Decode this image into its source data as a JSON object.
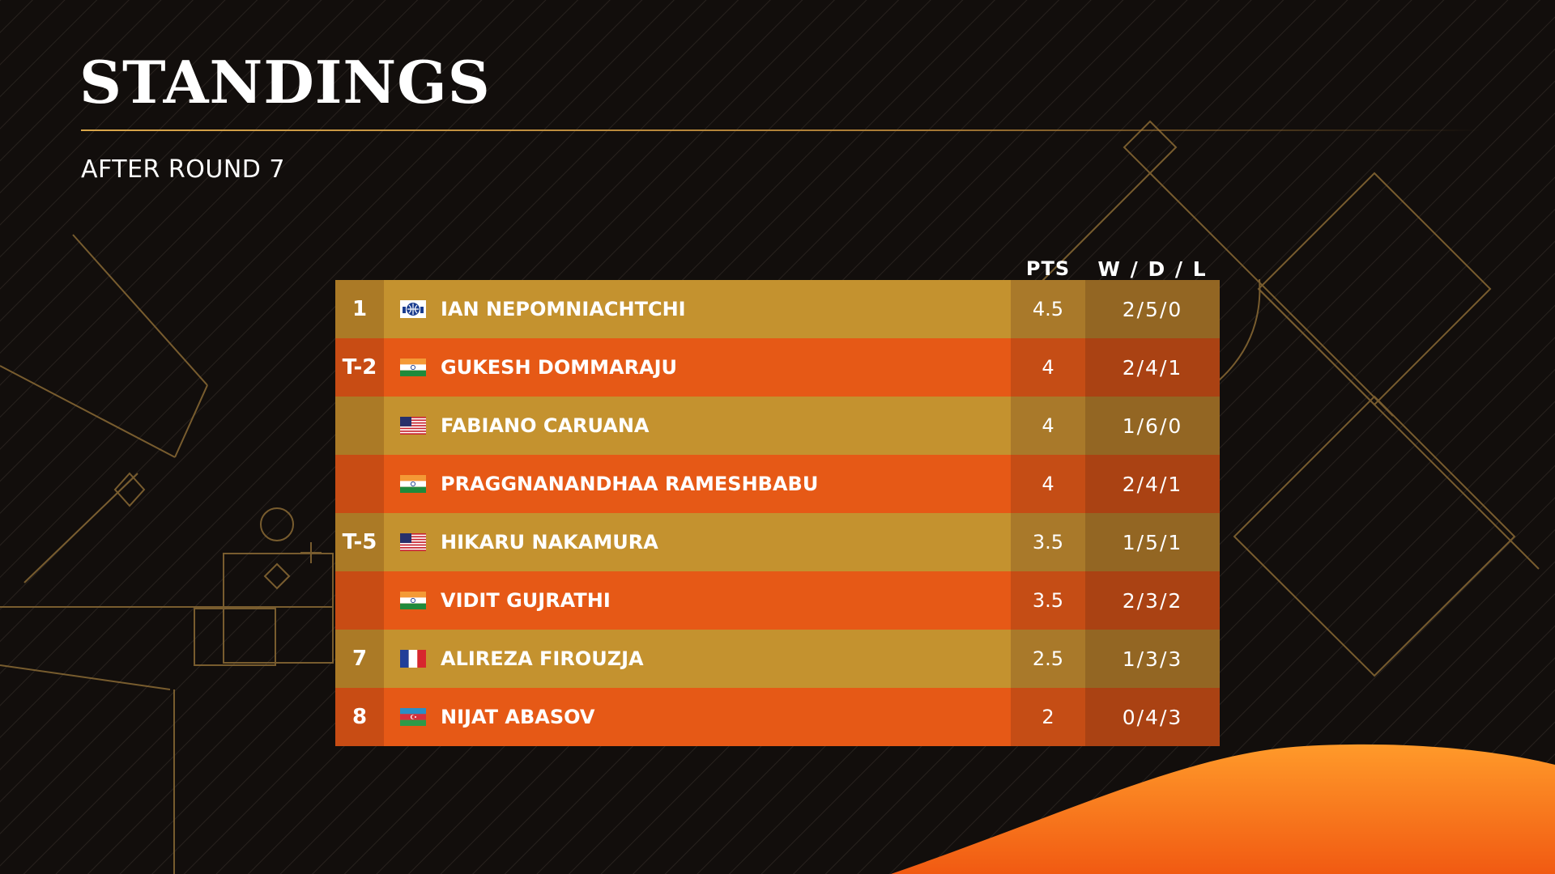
{
  "header": {
    "title": "STANDINGS",
    "subtitle": "AFTER ROUND 7"
  },
  "columns": {
    "pts": "PTS",
    "wdl": "W / D / L"
  },
  "colors": {
    "gold": "#c4922f",
    "orange": "#e65916",
    "accent_line": "#d9a64a",
    "background": "#120e0c"
  },
  "standings": [
    {
      "rank": "1",
      "flag": "fide-flag-icon",
      "name": "IAN NEPOMNIACHTCHI",
      "pts": "4.5",
      "wdl": "2/5/0"
    },
    {
      "rank": "T-2",
      "flag": "india-flag-icon",
      "name": "GUKESH DOMMARAJU",
      "pts": "4",
      "wdl": "2/4/1"
    },
    {
      "rank": "",
      "flag": "usa-flag-icon",
      "name": "FABIANO CARUANA",
      "pts": "4",
      "wdl": "1/6/0"
    },
    {
      "rank": "",
      "flag": "india-flag-icon",
      "name": "PRAGGNANANDHAA RAMESHBABU",
      "pts": "4",
      "wdl": "2/4/1"
    },
    {
      "rank": "T-5",
      "flag": "usa-flag-icon",
      "name": "HIKARU NAKAMURA",
      "pts": "3.5",
      "wdl": "1/5/1"
    },
    {
      "rank": "",
      "flag": "india-flag-icon",
      "name": "VIDIT GUJRATHI",
      "pts": "3.5",
      "wdl": "2/3/2"
    },
    {
      "rank": "7",
      "flag": "france-flag-icon",
      "name": "ALIREZA FIROUZJA",
      "pts": "2.5",
      "wdl": "1/3/3"
    },
    {
      "rank": "8",
      "flag": "azerbaijan-flag-icon",
      "name": "NIJAT ABASOV",
      "pts": "2",
      "wdl": "0/4/3"
    }
  ]
}
